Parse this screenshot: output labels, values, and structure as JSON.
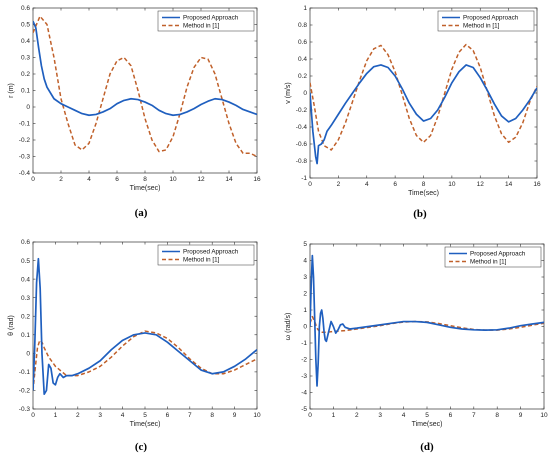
{
  "chart_data": [
    {
      "type": "line",
      "caption": "(a)",
      "xlabel": "Time(sec)",
      "ylabel": "r (m)",
      "xlim": [
        0,
        16
      ],
      "ylim": [
        -0.4,
        0.6
      ],
      "xticks": [
        "0",
        "2",
        "4",
        "6",
        "8",
        "10",
        "12",
        "14",
        "16"
      ],
      "yticks": [
        "-0.4",
        "-0.3",
        "-0.2",
        "-0.1",
        "0",
        "0.1",
        "0.2",
        "0.3",
        "0.4",
        "0.5",
        "0.6"
      ],
      "legend_position": "top-right",
      "series": [
        {
          "name": "Proposed Approach",
          "style": "solid",
          "color": "#1f5fbf",
          "x": [
            0,
            0.2,
            0.4,
            0.6,
            0.8,
            1,
            1.5,
            2,
            2.5,
            3,
            3.5,
            4,
            4.5,
            5,
            5.5,
            6,
            6.5,
            7,
            7.5,
            8,
            8.5,
            9,
            9.5,
            10,
            10.5,
            11,
            11.5,
            12,
            12.5,
            13,
            13.5,
            14,
            14.5,
            15,
            15.5,
            16
          ],
          "y": [
            0.52,
            0.48,
            0.36,
            0.25,
            0.17,
            0.12,
            0.05,
            0.02,
            0.0,
            -0.02,
            -0.04,
            -0.05,
            -0.045,
            -0.03,
            -0.01,
            0.02,
            0.04,
            0.05,
            0.045,
            0.03,
            0.01,
            -0.02,
            -0.04,
            -0.05,
            -0.045,
            -0.03,
            -0.01,
            0.015,
            0.035,
            0.05,
            0.045,
            0.03,
            0.01,
            -0.015,
            -0.03,
            -0.045
          ]
        },
        {
          "name": "Method in [1]",
          "style": "dashed",
          "color": "#c0602a",
          "x": [
            0,
            0.5,
            1,
            1.5,
            2,
            2.5,
            3,
            3.5,
            4,
            4.5,
            5,
            5.5,
            6,
            6.5,
            7,
            7.5,
            8,
            8.5,
            9,
            9.5,
            10,
            10.5,
            11,
            11.5,
            12,
            12.5,
            13,
            13.5,
            14,
            14.5,
            15,
            15.5,
            16
          ],
          "y": [
            0.45,
            0.55,
            0.5,
            0.3,
            0.05,
            -0.1,
            -0.23,
            -0.26,
            -0.22,
            -0.1,
            0.05,
            0.2,
            0.28,
            0.3,
            0.25,
            0.1,
            -0.07,
            -0.2,
            -0.27,
            -0.26,
            -0.18,
            -0.04,
            0.12,
            0.24,
            0.3,
            0.29,
            0.2,
            0.05,
            -0.1,
            -0.22,
            -0.28,
            -0.28,
            -0.3
          ]
        }
      ]
    },
    {
      "type": "line",
      "caption": "(b)",
      "xlabel": "Time(sec)",
      "ylabel": "v (m/s)",
      "xlim": [
        0,
        16
      ],
      "ylim": [
        -1,
        1
      ],
      "xticks": [
        "0",
        "2",
        "4",
        "6",
        "8",
        "10",
        "12",
        "14",
        "16"
      ],
      "yticks": [
        "-1",
        "-0.8",
        "-0.6",
        "-0.4",
        "-0.2",
        "0",
        "0.2",
        "0.4",
        "0.6",
        "0.8",
        "1"
      ],
      "legend_position": "top-right",
      "series": [
        {
          "name": "Proposed Approach",
          "style": "solid",
          "color": "#1f5fbf",
          "x": [
            0,
            0.2,
            0.4,
            0.5,
            0.6,
            0.8,
            1,
            1.2,
            1.5,
            2,
            2.5,
            3,
            3.5,
            4,
            4.5,
            5,
            5.5,
            6,
            6.5,
            7,
            7.5,
            8,
            8.5,
            9,
            9.5,
            10,
            10.5,
            11,
            11.5,
            12,
            12.5,
            13,
            13.5,
            14,
            14.5,
            15,
            15.5,
            16
          ],
          "y": [
            0.0,
            -0.45,
            -0.75,
            -0.83,
            -0.62,
            -0.6,
            -0.55,
            -0.45,
            -0.38,
            -0.25,
            -0.12,
            0.0,
            0.12,
            0.23,
            0.31,
            0.33,
            0.3,
            0.2,
            0.05,
            -0.12,
            -0.25,
            -0.33,
            -0.3,
            -0.2,
            -0.05,
            0.12,
            0.25,
            0.33,
            0.3,
            0.18,
            0.03,
            -0.13,
            -0.27,
            -0.34,
            -0.3,
            -0.2,
            -0.08,
            0.06
          ]
        },
        {
          "name": "Method in [1]",
          "style": "dashed",
          "color": "#c0602a",
          "x": [
            0,
            0.3,
            0.6,
            1,
            1.5,
            2,
            2.5,
            3,
            3.5,
            4,
            4.5,
            5,
            5.5,
            6,
            6.5,
            7,
            7.5,
            8,
            8.5,
            9,
            9.5,
            10,
            10.5,
            11,
            11.5,
            12,
            12.5,
            13,
            13.5,
            14,
            14.5,
            15,
            15.5,
            16
          ],
          "y": [
            0.12,
            -0.15,
            -0.45,
            -0.62,
            -0.67,
            -0.55,
            -0.35,
            -0.1,
            0.15,
            0.38,
            0.52,
            0.56,
            0.45,
            0.25,
            -0.02,
            -0.3,
            -0.5,
            -0.58,
            -0.5,
            -0.28,
            0.0,
            0.28,
            0.48,
            0.57,
            0.5,
            0.3,
            0.02,
            -0.27,
            -0.48,
            -0.58,
            -0.52,
            -0.35,
            -0.1,
            0.08
          ]
        }
      ]
    },
    {
      "type": "line",
      "caption": "(c)",
      "xlabel": "Time(sec)",
      "ylabel": "θ (rad)",
      "xlim": [
        0,
        10
      ],
      "ylim": [
        -0.3,
        0.6
      ],
      "xticks": [
        "0",
        "1",
        "2",
        "3",
        "4",
        "5",
        "6",
        "7",
        "8",
        "9",
        "10"
      ],
      "yticks": [
        "-0.3",
        "-0.2",
        "-0.1",
        "0",
        "0.1",
        "0.2",
        "0.3",
        "0.4",
        "0.5",
        "0.6"
      ],
      "legend_position": "top-right",
      "series": [
        {
          "name": "Proposed Approach",
          "style": "solid",
          "color": "#1f5fbf",
          "x": [
            0,
            0.08,
            0.16,
            0.24,
            0.32,
            0.4,
            0.5,
            0.6,
            0.7,
            0.8,
            0.9,
            1.0,
            1.1,
            1.2,
            1.35,
            1.5,
            1.75,
            2,
            2.5,
            3,
            3.5,
            4,
            4.5,
            5,
            5.5,
            6,
            6.5,
            7,
            7.5,
            8,
            8.5,
            9,
            9.5,
            10
          ],
          "y": [
            -0.2,
            0.05,
            0.38,
            0.51,
            0.35,
            0.0,
            -0.22,
            -0.2,
            -0.06,
            -0.08,
            -0.16,
            -0.17,
            -0.13,
            -0.11,
            -0.13,
            -0.12,
            -0.12,
            -0.11,
            -0.08,
            -0.04,
            0.02,
            0.07,
            0.1,
            0.11,
            0.1,
            0.06,
            0.01,
            -0.04,
            -0.09,
            -0.11,
            -0.1,
            -0.07,
            -0.03,
            0.02
          ]
        },
        {
          "name": "Method in [1]",
          "style": "dashed",
          "color": "#c0602a",
          "x": [
            0,
            0.1,
            0.2,
            0.3,
            0.4,
            0.5,
            0.7,
            1.0,
            1.5,
            2,
            2.5,
            3,
            3.5,
            4,
            4.5,
            5,
            5.5,
            6,
            6.5,
            7,
            7.5,
            8,
            8.5,
            9,
            9.5,
            10
          ],
          "y": [
            -0.2,
            -0.08,
            0.03,
            0.07,
            0.06,
            0.03,
            -0.02,
            -0.07,
            -0.12,
            -0.12,
            -0.1,
            -0.07,
            -0.02,
            0.04,
            0.09,
            0.12,
            0.11,
            0.08,
            0.03,
            -0.03,
            -0.08,
            -0.11,
            -0.11,
            -0.09,
            -0.06,
            -0.03
          ]
        }
      ]
    },
    {
      "type": "line",
      "caption": "(d)",
      "xlabel": "Time(sec)",
      "ylabel": "ω (rad/s)",
      "xlim": [
        0,
        10
      ],
      "ylim": [
        -5,
        5
      ],
      "xticks": [
        "0",
        "1",
        "2",
        "3",
        "4",
        "5",
        "6",
        "7",
        "8",
        "9",
        "10"
      ],
      "yticks": [
        "-5",
        "-4",
        "-3",
        "-2",
        "-1",
        "0",
        "1",
        "2",
        "3",
        "4",
        "5"
      ],
      "legend_position": "top-right",
      "series": [
        {
          "name": "Proposed Approach",
          "style": "solid",
          "color": "#1f5fbf",
          "x": [
            0,
            0.05,
            0.1,
            0.15,
            0.2,
            0.25,
            0.3,
            0.35,
            0.4,
            0.45,
            0.5,
            0.55,
            0.6,
            0.65,
            0.7,
            0.8,
            0.9,
            1.0,
            1.1,
            1.2,
            1.3,
            1.4,
            1.5,
            1.7,
            2,
            2.5,
            3,
            3.5,
            4,
            4.5,
            5,
            5.5,
            6,
            6.5,
            7,
            7.5,
            8,
            8.5,
            9,
            9.5,
            10
          ],
          "y": [
            0,
            2.5,
            4.3,
            3.0,
            0.5,
            -2.0,
            -3.6,
            -2.2,
            0.0,
            0.8,
            1.0,
            0.5,
            -0.3,
            -0.8,
            -0.9,
            -0.3,
            0.3,
            0.0,
            -0.4,
            -0.2,
            0.1,
            0.15,
            -0.05,
            -0.15,
            -0.1,
            0.0,
            0.1,
            0.2,
            0.3,
            0.3,
            0.25,
            0.1,
            -0.05,
            -0.15,
            -0.2,
            -0.22,
            -0.2,
            -0.1,
            0.05,
            0.15,
            0.25
          ]
        },
        {
          "name": "Method in [1]",
          "style": "dashed",
          "color": "#c0602a",
          "x": [
            0,
            0.1,
            0.2,
            0.3,
            0.4,
            0.5,
            0.7,
            1.0,
            1.5,
            2,
            2.5,
            3,
            3.5,
            4,
            4.5,
            5,
            5.5,
            6,
            6.5,
            7,
            7.5,
            8,
            8.5,
            9,
            9.5,
            10
          ],
          "y": [
            0.2,
            0.6,
            0.3,
            -0.1,
            -0.3,
            -0.35,
            -0.35,
            -0.3,
            -0.25,
            -0.15,
            -0.05,
            0.05,
            0.18,
            0.27,
            0.3,
            0.28,
            0.18,
            0.05,
            -0.08,
            -0.18,
            -0.22,
            -0.22,
            -0.15,
            -0.05,
            0.08,
            0.2
          ]
        }
      ]
    }
  ]
}
